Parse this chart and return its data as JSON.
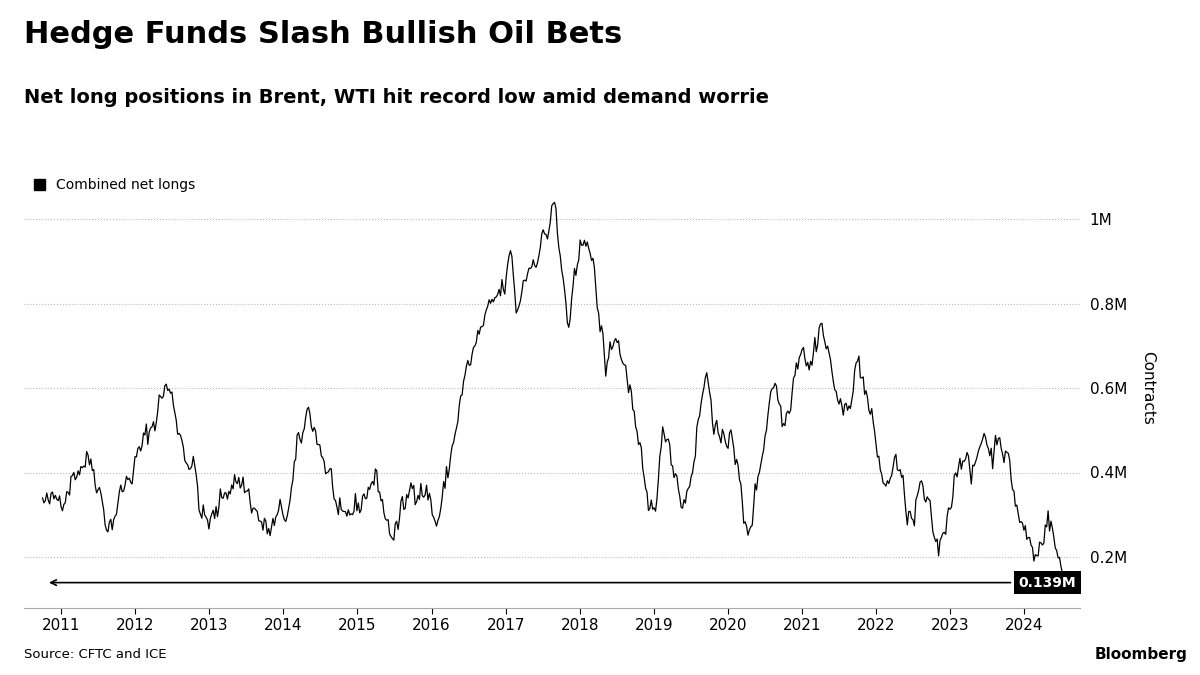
{
  "title": "Hedge Funds Slash Bullish Oil Bets",
  "subtitle": "Net long positions in Brent, WTI hit record low amid demand worrie",
  "legend_label": "Combined net longs",
  "ylabel": "Contracts",
  "source": "Source: CFTC and ICE",
  "annotation_value": "0.139M",
  "yticks": [
    0.2,
    0.4,
    0.6,
    0.8,
    1.0
  ],
  "ytick_labels": [
    "0.2M",
    "0.4M",
    "0.6M",
    "0.8M",
    "1M"
  ],
  "ylim": [
    0.08,
    1.12
  ],
  "xlim_start": 2010.5,
  "xlim_end": 2024.75,
  "xtick_years": [
    2011,
    2012,
    2013,
    2014,
    2015,
    2016,
    2017,
    2018,
    2019,
    2020,
    2021,
    2022,
    2023,
    2024
  ],
  "background_color": "#ffffff",
  "line_color": "#000000",
  "grid_color": "#bbbbbb",
  "annotation_bg": "#000000",
  "annotation_fg": "#ffffff",
  "title_fontsize": 22,
  "subtitle_fontsize": 14,
  "tick_fontsize": 11,
  "ylabel_fontsize": 11
}
